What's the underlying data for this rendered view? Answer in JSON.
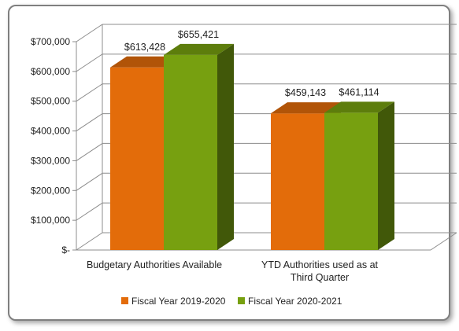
{
  "chart_data": {
    "type": "bar",
    "categories": [
      "Budgetary Authorities Available",
      "YTD Authorities used as at Third Quarter"
    ],
    "series": [
      {
        "name": "Fiscal Year 2019-2020",
        "values": [
          613428,
          459143
        ],
        "labels": [
          "$613,428",
          "$459,143"
        ],
        "color": "#E36C0A"
      },
      {
        "name": "Fiscal Year 2020-2021",
        "values": [
          655421,
          461114
        ],
        "labels": [
          "$655,421",
          "$461,114"
        ],
        "color": "#77A010"
      }
    ],
    "y_ticks": [
      {
        "value": 0,
        "label": "$-"
      },
      {
        "value": 100000,
        "label": "$100,000"
      },
      {
        "value": 200000,
        "label": "$200,000"
      },
      {
        "value": 300000,
        "label": "$300,000"
      },
      {
        "value": 400000,
        "label": "$400,000"
      },
      {
        "value": 500000,
        "label": "$500,000"
      },
      {
        "value": 600000,
        "label": "$600,000"
      },
      {
        "value": 700000,
        "label": "$700,000"
      }
    ],
    "ylim": [
      0,
      700000
    ],
    "grid": true,
    "legend_position": "bottom",
    "three_d": true
  }
}
